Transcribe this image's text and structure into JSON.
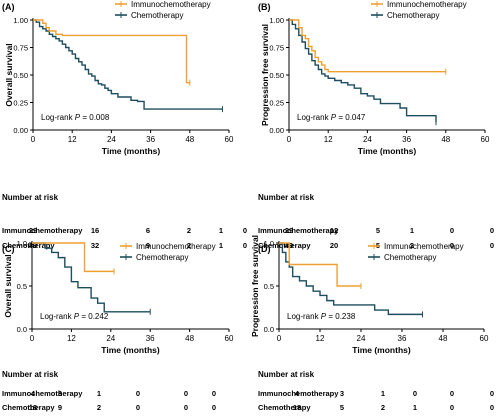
{
  "colors": {
    "immuno": "#f0a033",
    "chemo": "#1d4d5e",
    "axis": "#000000"
  },
  "chart_data": [
    {
      "type": "line",
      "panel_label": "(A)",
      "xlabel": "Time (months)",
      "ylabel": "Overall survival",
      "xlim": [
        0,
        60
      ],
      "ylim": [
        0,
        1.0
      ],
      "xticks": [
        "0",
        "12",
        "24",
        "36",
        "48",
        "60"
      ],
      "yticks": [
        "0.00",
        "0.25",
        "0.50",
        "0.75",
        "1.00"
      ],
      "annotation_prefix": "Log-rank ",
      "annotation_p": "P",
      "annotation_value": " = 0.008",
      "legend": [
        "Immunochemotherapy",
        "Chemotherapy"
      ],
      "series": [
        {
          "name": "Immunochemotherapy",
          "color_key": "immuno",
          "x": [
            0,
            2,
            3,
            4,
            5,
            7,
            9,
            46,
            47,
            48
          ],
          "y": [
            1.0,
            1.0,
            0.97,
            0.93,
            0.9,
            0.87,
            0.86,
            0.86,
            0.43,
            0.43
          ]
        },
        {
          "name": "Chemotherapy",
          "color_key": "chemo",
          "x": [
            0,
            1,
            2,
            3,
            4,
            5,
            6,
            7,
            8,
            9,
            10,
            11,
            12,
            13,
            14,
            15,
            16,
            17,
            18,
            19,
            20,
            21,
            22,
            23,
            24,
            26,
            28,
            30,
            32,
            34,
            37,
            58
          ],
          "y": [
            1.0,
            0.98,
            0.94,
            0.92,
            0.9,
            0.87,
            0.85,
            0.83,
            0.81,
            0.78,
            0.75,
            0.72,
            0.69,
            0.65,
            0.62,
            0.59,
            0.55,
            0.51,
            0.49,
            0.45,
            0.42,
            0.41,
            0.38,
            0.36,
            0.33,
            0.3,
            0.3,
            0.27,
            0.26,
            0.19,
            0.19,
            0.19
          ]
        }
      ],
      "risk_table": {
        "title": "Number at risk",
        "rows": [
          {
            "label": "Immunochemotherapy",
            "values": [
              "29",
              "16",
              "6",
              "2",
              "1",
              "0"
            ]
          },
          {
            "label": "Chemotherapy",
            "values": [
              "49",
              "32",
              "9",
              "2",
              "1",
              "0"
            ]
          }
        ]
      }
    },
    {
      "type": "line",
      "panel_label": "(B)",
      "xlabel": "Time (months)",
      "ylabel": "Progression free survival",
      "xlim": [
        0,
        60
      ],
      "ylim": [
        0,
        1.0
      ],
      "xticks": [
        "0",
        "12",
        "24",
        "36",
        "48",
        "60"
      ],
      "yticks": [
        "0.00",
        "0.25",
        "0.50",
        "0.75",
        "1.00"
      ],
      "annotation_prefix": "Log-rank ",
      "annotation_p": "P",
      "annotation_value": " = 0.047",
      "legend": [
        "Immunochemotherapy",
        "Chemotherapy"
      ],
      "series": [
        {
          "name": "Immunochemotherapy",
          "color_key": "immuno",
          "x": [
            0,
            2,
            3,
            4,
            5,
            6,
            7,
            8,
            9,
            10,
            11,
            12,
            48
          ],
          "y": [
            1.0,
            1.0,
            0.93,
            0.86,
            0.83,
            0.76,
            0.72,
            0.66,
            0.62,
            0.59,
            0.55,
            0.53,
            0.53
          ]
        },
        {
          "name": "Chemotherapy",
          "color_key": "chemo",
          "x": [
            0,
            1,
            2,
            3,
            4,
            5,
            6,
            7,
            8,
            9,
            10,
            11,
            12,
            14,
            16,
            18,
            20,
            22,
            24,
            26,
            28,
            30,
            32,
            34,
            36,
            42,
            45
          ],
          "y": [
            1.0,
            0.96,
            0.92,
            0.86,
            0.8,
            0.74,
            0.69,
            0.63,
            0.59,
            0.55,
            0.51,
            0.49,
            0.47,
            0.45,
            0.43,
            0.41,
            0.38,
            0.33,
            0.31,
            0.28,
            0.24,
            0.24,
            0.24,
            0.2,
            0.13,
            0.13,
            0.07
          ]
        }
      ],
      "risk_table": {
        "title": "Number at risk",
        "rows": [
          {
            "label": "Immunochemotherapy",
            "values": [
              "29",
              "12",
              "5",
              "1",
              "0",
              "0"
            ]
          },
          {
            "label": "Chemotherapy",
            "values": [
              "49",
              "20",
              "5",
              "2",
              "0",
              "0"
            ]
          }
        ]
      }
    },
    {
      "type": "line",
      "panel_label": "(C)",
      "xlabel": "Time (months)",
      "ylabel": "Overall survival",
      "xlim": [
        0,
        60
      ],
      "ylim": [
        0,
        1.0
      ],
      "xticks": [
        "0",
        "12",
        "24",
        "36",
        "48",
        "60"
      ],
      "yticks": [
        "0.0",
        "0.5",
        "1.0"
      ],
      "annotation_prefix": "Log-rank ",
      "annotation_p": "P",
      "annotation_value": " = 0.242",
      "legend": [
        "Immunochemotherapy",
        "Chemotherapy"
      ],
      "series": [
        {
          "name": "Immunochemotherapy",
          "color_key": "immuno",
          "x": [
            0,
            15,
            16,
            25
          ],
          "y": [
            1.0,
            1.0,
            0.67,
            0.67
          ]
        },
        {
          "name": "Chemotherapy",
          "color_key": "chemo",
          "x": [
            0,
            4,
            6,
            8,
            10,
            12,
            14,
            16,
            18,
            20,
            22,
            24,
            36
          ],
          "y": [
            1.0,
            0.94,
            0.89,
            0.83,
            0.72,
            0.55,
            0.48,
            0.48,
            0.36,
            0.3,
            0.2,
            0.2,
            0.2
          ]
        }
      ],
      "risk_table": {
        "title": "Number at risk",
        "rows": [
          {
            "label": "Immunochemotherapy",
            "values": [
              "4",
              "3",
              "1",
              "0",
              "0",
              "0"
            ]
          },
          {
            "label": "Chemotherapy",
            "values": [
              "18",
              "9",
              "2",
              "0",
              "0",
              "0"
            ]
          }
        ]
      }
    },
    {
      "type": "line",
      "panel_label": "(D)",
      "xlabel": "Time (months)",
      "ylabel": "Progression free survival",
      "xlim": [
        0,
        60
      ],
      "ylim": [
        0,
        1.0
      ],
      "xticks": [
        "0",
        "12",
        "24",
        "36",
        "48",
        "60"
      ],
      "yticks": [
        "0.0",
        "0.5",
        "1.0"
      ],
      "annotation_prefix": "Log-rank ",
      "annotation_p": "P",
      "annotation_value": " = 0.238",
      "legend": [
        "Immunochemotherapy",
        "Chemotherapy"
      ],
      "series": [
        {
          "name": "Immunochemotherapy",
          "color_key": "immuno",
          "x": [
            0,
            2,
            3,
            16,
            17,
            24
          ],
          "y": [
            1.0,
            1.0,
            0.75,
            0.75,
            0.5,
            0.5
          ]
        },
        {
          "name": "Chemotherapy",
          "color_key": "chemo",
          "x": [
            0,
            1,
            2,
            3,
            4,
            6,
            8,
            10,
            12,
            14,
            16,
            18,
            20,
            22,
            24,
            26,
            28,
            30,
            32,
            34,
            42
          ],
          "y": [
            1.0,
            0.89,
            0.78,
            0.72,
            0.61,
            0.56,
            0.5,
            0.44,
            0.39,
            0.33,
            0.28,
            0.28,
            0.28,
            0.28,
            0.28,
            0.28,
            0.22,
            0.22,
            0.17,
            0.17,
            0.17
          ]
        }
      ],
      "risk_table": {
        "title": "Number at risk",
        "rows": [
          {
            "label": "Immunochemotherapy",
            "values": [
              "4",
              "3",
              "1",
              "0",
              "0",
              "0"
            ]
          },
          {
            "label": "Chemotherapy",
            "values": [
              "18",
              "5",
              "2",
              "1",
              "0",
              "0"
            ]
          }
        ]
      }
    }
  ]
}
